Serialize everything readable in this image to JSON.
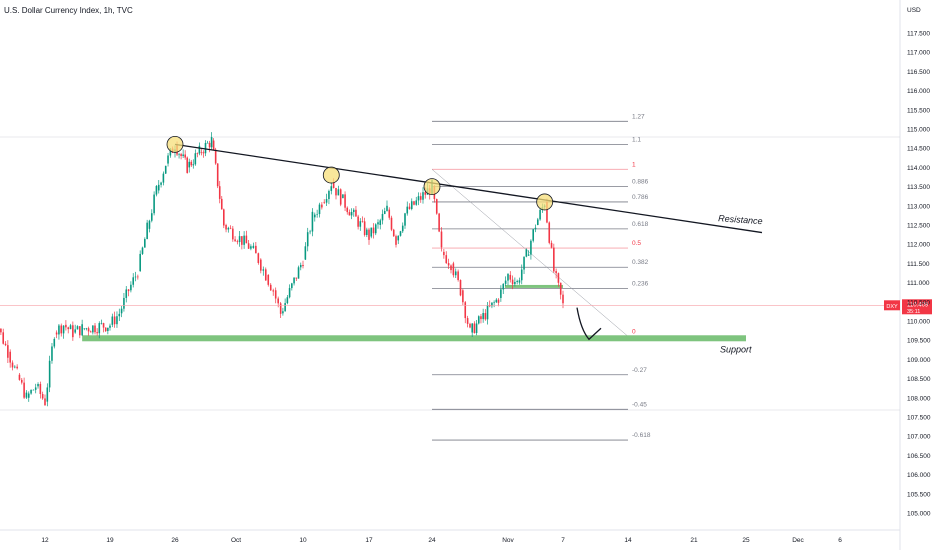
{
  "title": "U.S. Dollar Currency Index, 1h, TVC",
  "currency": "USD",
  "chart_data": {
    "type": "candlestick",
    "ylim": [
      104.6,
      117.8
    ],
    "y_ticks": [
      "117.500",
      "117.000",
      "116.500",
      "116.000",
      "115.500",
      "115.000",
      "114.500",
      "114.000",
      "113.500",
      "113.000",
      "112.500",
      "112.000",
      "111.500",
      "111.000",
      "110.500",
      "110.000",
      "109.500",
      "109.000",
      "108.500",
      "108.000",
      "107.500",
      "107.000",
      "106.500",
      "106.000",
      "105.500",
      "105.000"
    ],
    "x_ticks": [
      "12",
      "19",
      "26",
      "Oct",
      "10",
      "17",
      "24",
      "Nov",
      "7",
      "14",
      "21",
      "25",
      "Dec",
      "6"
    ],
    "last_price": {
      "symbol": "DXY",
      "value": "110.409",
      "countdown": "35:11"
    },
    "close_series": [
      {
        "t": "Sep 06",
        "v": 110.5
      },
      {
        "t": "Sep 07",
        "v": 109.8
      },
      {
        "t": "Sep 08",
        "v": 109.2
      },
      {
        "t": "Sep 09",
        "v": 108.6
      },
      {
        "t": "Sep 10",
        "v": 108.0
      },
      {
        "t": "Sep 11",
        "v": 108.3
      },
      {
        "t": "Sep 12",
        "v": 107.9
      },
      {
        "t": "Sep 13",
        "v": 109.7
      },
      {
        "t": "Sep 14",
        "v": 109.9
      },
      {
        "t": "Sep 15",
        "v": 109.7
      },
      {
        "t": "Sep 16",
        "v": 109.8
      },
      {
        "t": "Sep 19",
        "v": 109.9
      },
      {
        "t": "Sep 20",
        "v": 110.2
      },
      {
        "t": "Sep 21",
        "v": 110.8
      },
      {
        "t": "Sep 22",
        "v": 111.3
      },
      {
        "t": "Sep 23",
        "v": 112.4
      },
      {
        "t": "Sep 24",
        "v": 113.4
      },
      {
        "t": "Sep 25",
        "v": 114.1
      },
      {
        "t": "Sep 26",
        "v": 114.6
      },
      {
        "t": "Sep 27",
        "v": 114.0
      },
      {
        "t": "Sep 28",
        "v": 114.4
      },
      {
        "t": "Sep 29",
        "v": 114.7
      },
      {
        "t": "Sep 30",
        "v": 112.5
      },
      {
        "t": "Oct 03",
        "v": 111.9
      },
      {
        "t": "Oct 04",
        "v": 111.6
      },
      {
        "t": "Oct 05",
        "v": 111.2
      },
      {
        "t": "Oct 06",
        "v": 110.8
      },
      {
        "t": "Oct 07",
        "v": 110.2
      },
      {
        "t": "Oct 10",
        "v": 111.6
      },
      {
        "t": "Oct 11",
        "v": 112.7
      },
      {
        "t": "Oct 12",
        "v": 113.1
      },
      {
        "t": "Oct 13",
        "v": 113.6
      },
      {
        "t": "Oct 14",
        "v": 113.2
      },
      {
        "t": "Oct 17",
        "v": 112.2
      },
      {
        "t": "Oct 18",
        "v": 112.5
      },
      {
        "t": "Oct 19",
        "v": 112.9
      },
      {
        "t": "Oct 20",
        "v": 112.1
      },
      {
        "t": "Oct 21",
        "v": 112.8
      },
      {
        "t": "Oct 24",
        "v": 113.5
      },
      {
        "t": "Oct 25",
        "v": 111.8
      },
      {
        "t": "Oct 26",
        "v": 111.5
      },
      {
        "t": "Oct 27",
        "v": 110.8
      },
      {
        "t": "Oct 28",
        "v": 109.7
      },
      {
        "t": "Oct 31",
        "v": 110.6
      },
      {
        "t": "Nov 01",
        "v": 111.2
      },
      {
        "t": "Nov 02",
        "v": 111.0
      },
      {
        "t": "Nov 03",
        "v": 111.7
      },
      {
        "t": "Nov 04",
        "v": 112.5
      },
      {
        "t": "Nov 05",
        "v": 113.1
      },
      {
        "t": "Nov 06",
        "v": 111.3
      },
      {
        "t": "Nov 07",
        "v": 110.4
      }
    ],
    "fibonacci": [
      {
        "level": "1.27",
        "color": "#787b86",
        "y": 115.2
      },
      {
        "level": "1.1",
        "color": "#787b86",
        "y": 114.6
      },
      {
        "level": "1",
        "color": "#f23645",
        "y": 113.95
      },
      {
        "level": "0.886",
        "color": "#787b86",
        "y": 113.5
      },
      {
        "level": "0.786",
        "color": "#787b86",
        "y": 113.1
      },
      {
        "level": "0.618",
        "color": "#787b86",
        "y": 112.4
      },
      {
        "level": "0.5",
        "color": "#f23645",
        "y": 111.9
      },
      {
        "level": "0.382",
        "color": "#787b86",
        "y": 111.4
      },
      {
        "level": "0.236",
        "color": "#787b86",
        "y": 110.85
      },
      {
        "level": "0",
        "color": "#f23645",
        "y": 109.6
      },
      {
        "level": "-0.27",
        "color": "#787b86",
        "y": 108.6
      },
      {
        "level": "-0.45",
        "color": "#787b86",
        "y": 107.7
      },
      {
        "level": "-0.618",
        "color": "#787b86",
        "y": 106.9
      }
    ],
    "annotations": {
      "resistance_label": "Resistance",
      "support_label": "Support",
      "support_level": 109.55,
      "resistance_start": {
        "t": "Sep 26",
        "v": 114.6
      },
      "resistance_end": {
        "t": "Nov 25",
        "v": 112.3
      },
      "touch_points": [
        {
          "t": "Sep 26",
          "v": 114.6
        },
        {
          "t": "Oct 13",
          "v": 113.8
        },
        {
          "t": "Oct 24",
          "v": 113.5
        },
        {
          "t": "Nov 05",
          "v": 113.1
        }
      ]
    },
    "colors": {
      "up": "#089981",
      "down": "#f23645",
      "support": "#7ec47e",
      "resistance": "#131722",
      "price_tag": "#f23645"
    },
    "grid": false
  }
}
